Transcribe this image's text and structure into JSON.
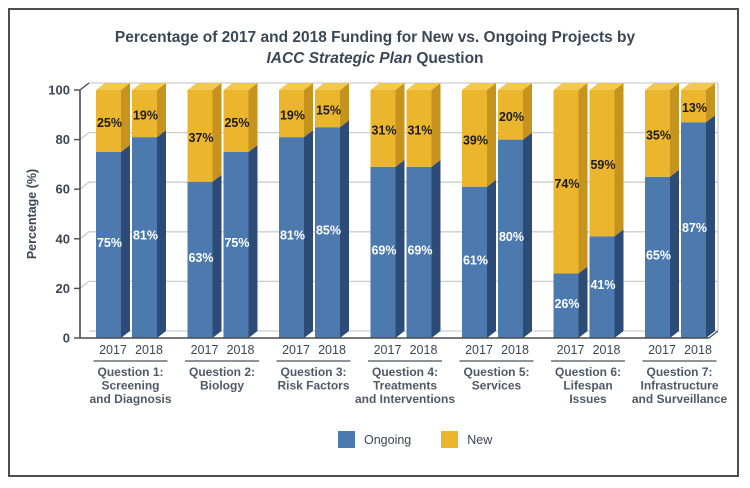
{
  "title": {
    "line1": "Percentage of 2017 and 2018 Funding for New vs. Ongoing Projects by",
    "line2_italic": "IACC Strategic Plan",
    "line2_rest": " Question"
  },
  "chart_data": {
    "type": "bar",
    "stacked": true,
    "effect": "3d",
    "title": "Percentage of 2017 and 2018 Funding for New vs. Ongoing Projects by IACC Strategic Plan Question",
    "ylabel": "Percentage (%)",
    "ylim": [
      0,
      100
    ],
    "yticks": [
      0,
      20,
      40,
      60,
      80,
      100
    ],
    "grid": true,
    "legend_position": "bottom",
    "series_names": [
      "Ongoing",
      "New"
    ],
    "years": [
      "2017",
      "2018"
    ],
    "colors": {
      "ongoing_front": "#4c79ae",
      "ongoing_side": "#2c4c77",
      "new_front": "#ebb52e",
      "new_side": "#c6931f",
      "new_top": "#f2c851",
      "gridline": "#cdcdcd",
      "axis": "#4a4a4a",
      "label_on_ongoing": "#ffffff",
      "label_on_new": "#1c1c1c",
      "text": "#3b4754",
      "group_text": "#4e5a66",
      "underline": "#8c9399"
    },
    "groups": [
      {
        "label_lines": [
          "Question 1:",
          "Screening",
          "and Diagnosis"
        ],
        "bars": [
          {
            "year": "2017",
            "ongoing": 75,
            "new": 25
          },
          {
            "year": "2018",
            "ongoing": 81,
            "new": 19
          }
        ]
      },
      {
        "label_lines": [
          "Question 2:",
          "Biology"
        ],
        "bars": [
          {
            "year": "2017",
            "ongoing": 63,
            "new": 37
          },
          {
            "year": "2018",
            "ongoing": 75,
            "new": 25
          }
        ]
      },
      {
        "label_lines": [
          "Question 3:",
          "Risk Factors"
        ],
        "bars": [
          {
            "year": "2017",
            "ongoing": 81,
            "new": 19
          },
          {
            "year": "2018",
            "ongoing": 85,
            "new": 15
          }
        ]
      },
      {
        "label_lines": [
          "Question 4:",
          "Treatments",
          "and Interventions"
        ],
        "bars": [
          {
            "year": "2017",
            "ongoing": 69,
            "new": 31
          },
          {
            "year": "2018",
            "ongoing": 69,
            "new": 31
          }
        ]
      },
      {
        "label_lines": [
          "Question 5:",
          "Services"
        ],
        "bars": [
          {
            "year": "2017",
            "ongoing": 61,
            "new": 39
          },
          {
            "year": "2018",
            "ongoing": 80,
            "new": 20
          }
        ]
      },
      {
        "label_lines": [
          "Question 6:",
          "Lifespan",
          "Issues"
        ],
        "bars": [
          {
            "year": "2017",
            "ongoing": 26,
            "new": 74
          },
          {
            "year": "2018",
            "ongoing": 41,
            "new": 59
          }
        ]
      },
      {
        "label_lines": [
          "Question 7:",
          "Infrastructure",
          "and Surveillance"
        ],
        "bars": [
          {
            "year": "2017",
            "ongoing": 65,
            "new": 35
          },
          {
            "year": "2018",
            "ongoing": 87,
            "new": 13
          }
        ]
      }
    ],
    "legend": [
      {
        "label": "Ongoing",
        "color": "#4c79ae"
      },
      {
        "label": "New",
        "color": "#ebb52e"
      }
    ]
  }
}
